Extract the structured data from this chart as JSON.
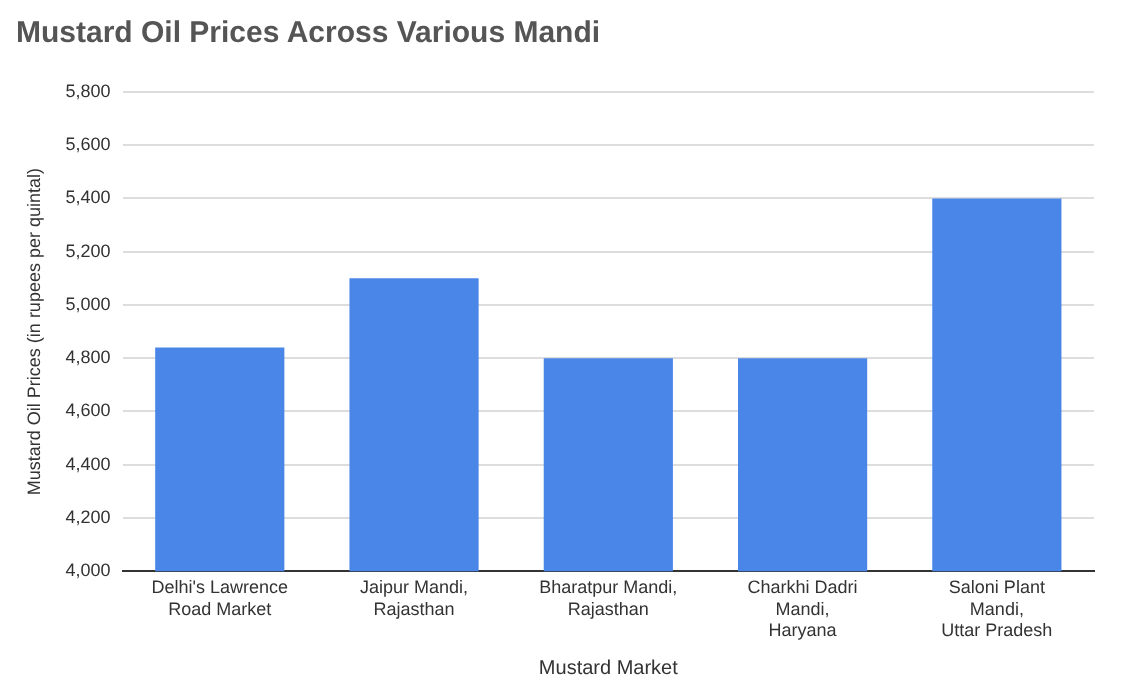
{
  "chart_data": {
    "type": "bar",
    "title": "Mustard Oil Prices Across Various Mandi",
    "xlabel": "Mustard Market",
    "ylabel": "Mustard Oil Prices (in rupees per quintal)",
    "categories": [
      "Delhi's Lawrence Road Market",
      "Jaipur Mandi, Rajasthan",
      "Bharatpur Mandi, Rajasthan",
      "Charkhi Dadri Mandi, Haryana",
      "Saloni Plant Mandi, Uttar Pradesh"
    ],
    "values": [
      4840,
      5100,
      4800,
      4800,
      5400
    ],
    "color": "#4a86e8",
    "ylim": [
      4000,
      5800
    ],
    "yticks": [
      {
        "value": 4000,
        "label": "4,000"
      },
      {
        "value": 4200,
        "label": "4,200"
      },
      {
        "value": 4400,
        "label": "4,400"
      },
      {
        "value": 4600,
        "label": "4,600"
      },
      {
        "value": 4800,
        "label": "4,800"
      },
      {
        "value": 5000,
        "label": "5,000"
      },
      {
        "value": 5200,
        "label": "5,200"
      },
      {
        "value": 5400,
        "label": "5,400"
      },
      {
        "value": 5600,
        "label": "5,600"
      },
      {
        "value": 5800,
        "label": "5,800"
      }
    ],
    "grid": "y",
    "legend": false
  }
}
